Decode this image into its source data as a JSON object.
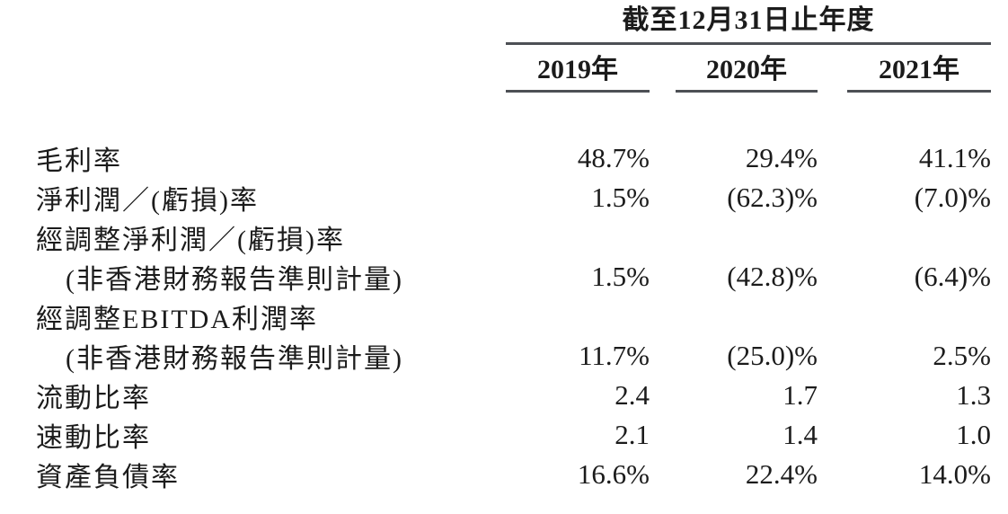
{
  "table": {
    "period_header": "截至12月31日止年度",
    "columns": [
      "2019年",
      "2020年",
      "2021年"
    ],
    "rows": [
      {
        "label": "毛利率",
        "indent": false,
        "values": [
          "48.7%",
          "29.4%",
          "41.1%"
        ]
      },
      {
        "label": "淨利潤／(虧損)率",
        "indent": false,
        "values": [
          "1.5%",
          "(62.3)%",
          "(7.0)%"
        ]
      },
      {
        "label": "經調整淨利潤／(虧損)率",
        "indent": false,
        "values": [
          "",
          "",
          ""
        ]
      },
      {
        "label": "(非香港財務報告準則計量)",
        "indent": true,
        "values": [
          "1.5%",
          "(42.8)%",
          "(6.4)%"
        ]
      },
      {
        "label": "經調整EBITDA利潤率",
        "indent": false,
        "values": [
          "",
          "",
          ""
        ]
      },
      {
        "label": "(非香港財務報告準則計量)",
        "indent": true,
        "values": [
          "11.7%",
          "(25.0)%",
          "2.5%"
        ]
      },
      {
        "label": "流動比率",
        "indent": false,
        "values": [
          "2.4",
          "1.7",
          "1.3"
        ]
      },
      {
        "label": "速動比率",
        "indent": false,
        "values": [
          "2.1",
          "1.4",
          "1.0"
        ]
      },
      {
        "label": "資產負債率",
        "indent": false,
        "values": [
          "16.6%",
          "22.4%",
          "14.0%"
        ]
      }
    ],
    "colors": {
      "text": "#1b1b1b",
      "rule": "#4d5055",
      "background": "#ffffff"
    }
  }
}
